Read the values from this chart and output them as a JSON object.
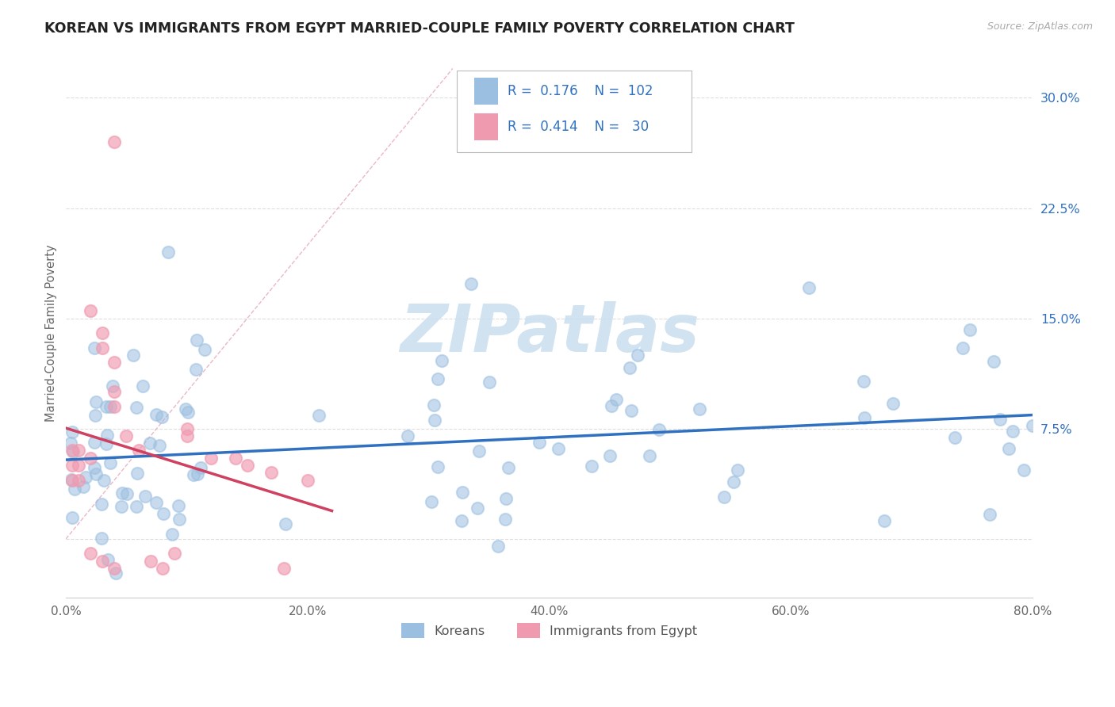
{
  "title": "KOREAN VS IMMIGRANTS FROM EGYPT MARRIED-COUPLE FAMILY POVERTY CORRELATION CHART",
  "source": "Source: ZipAtlas.com",
  "ylabel": "Married-Couple Family Poverty",
  "xlim": [
    0.0,
    0.8
  ],
  "ylim": [
    -0.04,
    0.32
  ],
  "yticks": [
    0.0,
    0.075,
    0.15,
    0.225,
    0.3
  ],
  "ytick_labels": [
    "",
    "7.5%",
    "15.0%",
    "22.5%",
    "30.0%"
  ],
  "xticks": [
    0.0,
    0.2,
    0.4,
    0.6,
    0.8
  ],
  "xtick_labels": [
    "0.0%",
    "20.0%",
    "40.0%",
    "60.0%",
    "80.0%"
  ],
  "korean_color": "#9bbfe0",
  "egypt_color": "#f09ab0",
  "korean_line_color": "#3070c0",
  "egypt_line_color": "#d04060",
  "ref_line_color": "#e8a0b0",
  "legend_korean_R": "0.176",
  "legend_korean_N": "102",
  "legend_egypt_R": "0.414",
  "legend_egypt_N": "30",
  "watermark_color": "#ddeef8",
  "title_color": "#222222",
  "axis_label_color": "#3070c0",
  "tick_color": "#666666",
  "grid_color": "#dddddd",
  "legend_text_color": "#3070c0"
}
